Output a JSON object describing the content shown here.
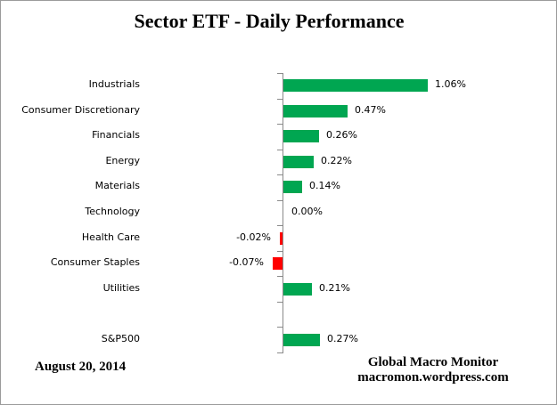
{
  "title": "Sector ETF - Daily Performance",
  "footer": {
    "date": "August 20, 2014",
    "source_line1": "Global Macro Monitor",
    "source_line2": "macromon.wordpress.com"
  },
  "colors": {
    "positive_bar": "#00A651",
    "negative_bar": "#FF0000",
    "axis": "#8A8A8A",
    "text": "#000000"
  },
  "chart_data": {
    "type": "bar",
    "orientation": "horizontal",
    "title": "Sector ETF - Daily Performance",
    "xlabel": "",
    "ylabel": "",
    "unit": "%",
    "grid": false,
    "legend": false,
    "data_labels": true,
    "categories": [
      "Industrials",
      "Consumer Discretionary",
      "Financials",
      "Energy",
      "Materials",
      "Technology",
      "Health Care",
      "Consumer Staples",
      "Utilities",
      "",
      "S&P500"
    ],
    "values": [
      1.06,
      0.47,
      0.26,
      0.22,
      0.14,
      0.0,
      -0.02,
      -0.07,
      0.21,
      null,
      0.27
    ],
    "value_labels": [
      "1.06%",
      "0.47%",
      "0.26%",
      "0.22%",
      "0.14%",
      "0.00%",
      "-0.02%",
      "-0.07%",
      "0.21%",
      "",
      "0.27%"
    ]
  }
}
